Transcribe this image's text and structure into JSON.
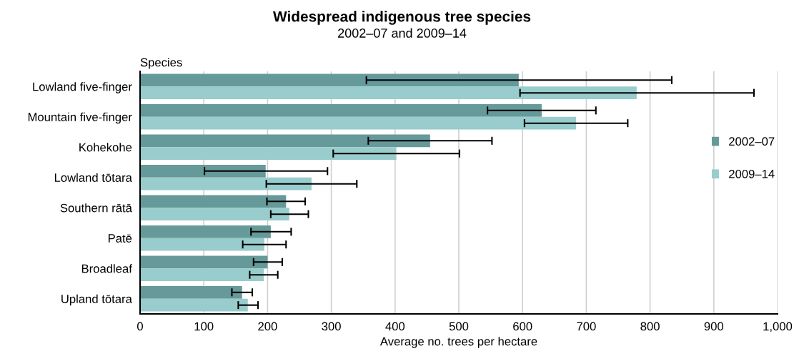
{
  "chart_data": {
    "type": "bar",
    "orientation": "horizontal",
    "title": "Widespread indigenous tree species",
    "subtitle": "2002–07 and 2009–14",
    "xlabel": "Average no. trees per hectare",
    "ylabel": "Species",
    "categories": [
      "Lowland five-finger",
      "Mountain five-finger",
      "Kohekohe",
      "Lowland tōtara",
      "Southern rātā",
      "Patē",
      "Broadleaf",
      "Upland tōtara"
    ],
    "series": [
      {
        "name": "2002–07",
        "color": "#669999",
        "values": [
          594,
          630,
          455,
          197,
          229,
          205,
          200,
          160
        ],
        "errors": [
          [
            355,
            834
          ],
          [
            545,
            715
          ],
          [
            358,
            552
          ],
          [
            101,
            294
          ],
          [
            199,
            259
          ],
          [
            174,
            237
          ],
          [
            178,
            223
          ],
          [
            144,
            176
          ]
        ]
      },
      {
        "name": "2009–14",
        "color": "#99cccc",
        "values": [
          779,
          684,
          402,
          269,
          234,
          195,
          194,
          169
        ],
        "errors": [
          [
            596,
            963
          ],
          [
            603,
            765
          ],
          [
            303,
            501
          ],
          [
            198,
            340
          ],
          [
            205,
            264
          ],
          [
            161,
            229
          ],
          [
            172,
            216
          ],
          [
            154,
            185
          ]
        ]
      }
    ],
    "xlim": [
      0,
      1000
    ],
    "xticks": [
      0,
      100,
      200,
      300,
      400,
      500,
      600,
      700,
      800,
      900,
      {
        "value": 1000,
        "label": "1,000"
      }
    ],
    "grid": "x",
    "legend": "right"
  }
}
